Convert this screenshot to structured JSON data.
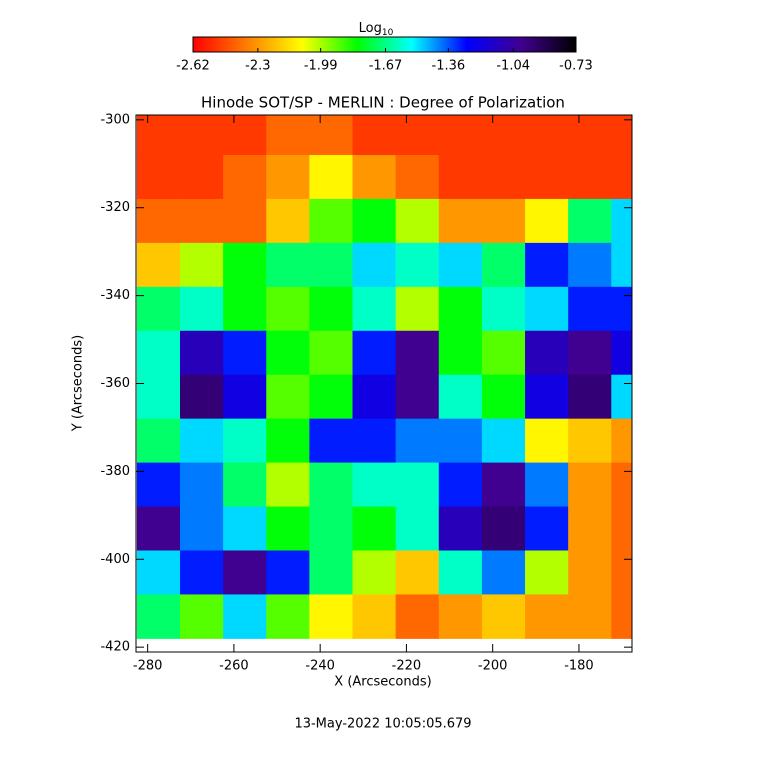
{
  "chart_data": {
    "type": "heatmap",
    "title": "Hinode SOT/SP - MERLIN : Degree of Polarization",
    "xlabel": "X (Arcseconds)",
    "ylabel": "Y (Arcseconds)",
    "footer": "13-May-2022 10:05:05.679",
    "colorbar_label": "Log",
    "colorbar_label_sub": "10",
    "clim": [
      -2.62,
      -0.73
    ],
    "cticks": [
      -2.62,
      -2.3,
      -1.99,
      -1.67,
      -1.36,
      -1.04,
      -0.73
    ],
    "colormap": [
      "#ff0000",
      "#ff8000",
      "#ffff00",
      "#00ff00",
      "#00ffff",
      "#0000ff",
      "#400090",
      "#000000"
    ],
    "xlim": [
      -282.7,
      -167.7
    ],
    "ylim": [
      -421.1,
      -298.9
    ],
    "xticks": [
      -280,
      -260,
      -240,
      -220,
      -200,
      -180
    ],
    "yticks": [
      -300,
      -320,
      -340,
      -360,
      -380,
      -400,
      -420
    ],
    "x": [
      -277.5,
      -267.5,
      -257.5,
      -247.5,
      -237.5,
      -227.5,
      -217.5,
      -207.5,
      -197.5,
      -187.5,
      -177.5,
      -167.5
    ],
    "y": [
      -303,
      -313,
      -323,
      -333,
      -343,
      -353,
      -363,
      -373,
      -383,
      -393,
      -403,
      -413
    ],
    "z": [
      [
        -2.5,
        -2.5,
        -2.5,
        -2.4,
        -2.4,
        -2.5,
        -2.5,
        -2.5,
        -2.5,
        -2.5,
        -2.5,
        -2.5
      ],
      [
        -2.5,
        -2.5,
        -2.4,
        -2.3,
        -2.1,
        -2.3,
        -2.4,
        -2.5,
        -2.5,
        -2.5,
        -2.5,
        -2.5
      ],
      [
        -2.4,
        -2.4,
        -2.4,
        -2.2,
        -1.9,
        -1.8,
        -2.0,
        -2.3,
        -2.3,
        -2.1,
        -1.7,
        -1.5
      ],
      [
        -2.2,
        -2.0,
        -1.8,
        -1.7,
        -1.7,
        -1.5,
        -1.6,
        -1.5,
        -1.7,
        -1.3,
        -1.4,
        -1.5
      ],
      [
        -1.7,
        -1.6,
        -1.8,
        -1.9,
        -1.8,
        -1.6,
        -2.0,
        -1.8,
        -1.6,
        -1.5,
        -1.3,
        -1.3
      ],
      [
        -1.6,
        -1.1,
        -1.3,
        -1.8,
        -1.9,
        -1.3,
        -1.0,
        -1.8,
        -1.9,
        -1.1,
        -1.0,
        -1.2
      ],
      [
        -1.6,
        -0.95,
        -1.2,
        -1.9,
        -1.8,
        -1.2,
        -1.0,
        -1.6,
        -1.8,
        -1.2,
        -0.95,
        -1.5
      ],
      [
        -1.7,
        -1.5,
        -1.6,
        -1.8,
        -1.3,
        -1.3,
        -1.4,
        -1.4,
        -1.5,
        -2.1,
        -2.2,
        -2.3
      ],
      [
        -1.3,
        -1.4,
        -1.7,
        -2.0,
        -1.7,
        -1.6,
        -1.6,
        -1.3,
        -1.0,
        -1.4,
        -2.3,
        -2.4
      ],
      [
        -1.0,
        -1.4,
        -1.5,
        -1.8,
        -1.7,
        -1.8,
        -1.6,
        -1.1,
        -0.95,
        -1.3,
        -2.3,
        -2.4
      ],
      [
        -1.5,
        -1.3,
        -1.0,
        -1.3,
        -1.7,
        -2.0,
        -2.2,
        -1.6,
        -1.4,
        -2.0,
        -2.3,
        -2.4
      ],
      [
        -1.7,
        -1.9,
        -1.5,
        -1.9,
        -2.1,
        -2.2,
        -2.4,
        -2.3,
        -2.2,
        -2.3,
        -2.3,
        -2.4
      ]
    ]
  }
}
